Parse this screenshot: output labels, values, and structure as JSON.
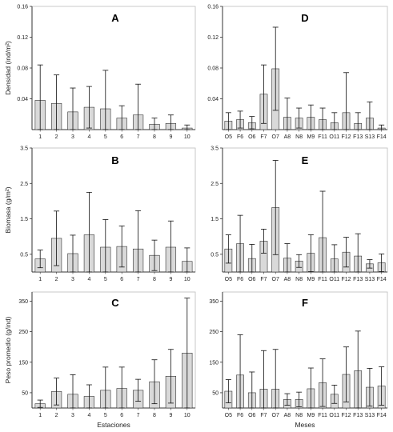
{
  "chart_data": [
    {
      "panel": "A",
      "type": "bar",
      "categories": [
        "1",
        "2",
        "3",
        "4",
        "5",
        "6",
        "7",
        "8",
        "9",
        "10"
      ],
      "values": [
        0.038,
        0.034,
        0.023,
        0.029,
        0.027,
        0.015,
        0.019,
        0.007,
        0.008,
        0.002
      ],
      "errors": [
        0.046,
        0.037,
        0.031,
        0.027,
        0.05,
        0.016,
        0.04,
        0.008,
        0.011,
        0.004
      ],
      "ylabel": "Densidad (ind/m²)",
      "xlabel": "",
      "ylim": [
        0,
        0.16
      ],
      "yticks": [
        0.04,
        0.08,
        0.12,
        0.16
      ],
      "ytick_labels": [
        "0.04",
        "0.08",
        "0.12",
        "0.16"
      ]
    },
    {
      "panel": "D",
      "type": "bar",
      "categories": [
        "O5",
        "F6",
        "O6",
        "F7",
        "O7",
        "A8",
        "N8",
        "M9",
        "F11",
        "O11",
        "F12",
        "F13",
        "S13",
        "F14"
      ],
      "values": [
        0.011,
        0.013,
        0.009,
        0.046,
        0.079,
        0.016,
        0.015,
        0.016,
        0.013,
        0.009,
        0.022,
        0.008,
        0.015,
        0.002
      ],
      "errors": [
        0.011,
        0.011,
        0.008,
        0.038,
        0.054,
        0.025,
        0.013,
        0.016,
        0.015,
        0.013,
        0.052,
        0.014,
        0.021,
        0.004
      ],
      "ylabel": "",
      "xlabel": "",
      "ylim": [
        0,
        0.16
      ],
      "yticks": [
        0.04,
        0.08,
        0.12,
        0.16
      ],
      "ytick_labels": [
        "0.04",
        "0.08",
        "0.12",
        "0.16"
      ]
    },
    {
      "panel": "B",
      "type": "bar",
      "categories": [
        "1",
        "2",
        "3",
        "4",
        "5",
        "6",
        "7",
        "8",
        "9",
        "10"
      ],
      "values": [
        0.37,
        0.95,
        0.52,
        1.05,
        0.7,
        0.72,
        0.65,
        0.47,
        0.7,
        0.3
      ],
      "errors": [
        0.25,
        0.77,
        0.52,
        1.2,
        0.78,
        0.58,
        1.08,
        0.43,
        0.74,
        0.38
      ],
      "ylabel": "Biomasa (g/m²)",
      "xlabel": "",
      "ylim": [
        0,
        3.5
      ],
      "yticks": [
        0.5,
        1.5,
        2.5,
        3.5
      ],
      "ytick_labels": [
        "0.5",
        "1.5",
        "2.5",
        "3.5"
      ]
    },
    {
      "panel": "E",
      "type": "bar",
      "categories": [
        "O5",
        "F6",
        "O6",
        "F7",
        "O7",
        "A8",
        "N8",
        "M9",
        "F11",
        "O11",
        "F12",
        "F13",
        "S13",
        "F14"
      ],
      "values": [
        0.65,
        0.8,
        0.38,
        0.87,
        1.82,
        0.39,
        0.31,
        0.53,
        0.97,
        0.37,
        0.56,
        0.45,
        0.23,
        0.26
      ],
      "errors": [
        0.4,
        0.8,
        0.4,
        0.34,
        1.33,
        0.41,
        0.18,
        0.52,
        1.31,
        0.4,
        0.42,
        0.63,
        0.12,
        0.25
      ],
      "ylabel": "",
      "xlabel": "",
      "ylim": [
        0,
        3.5
      ],
      "yticks": [
        0.5,
        1.5,
        2.5,
        3.5
      ],
      "ytick_labels": [
        "0.5",
        "1.5",
        "2.5",
        "3.5"
      ]
    },
    {
      "panel": "C",
      "type": "bar",
      "categories": [
        "1",
        "2",
        "3",
        "4",
        "5",
        "6",
        "7",
        "8",
        "9",
        "10"
      ],
      "values": [
        14,
        54,
        45,
        38,
        58,
        64,
        58,
        86,
        104,
        180
      ],
      "errors": [
        12,
        44,
        64,
        38,
        76,
        70,
        36,
        72,
        88,
        180
      ],
      "ylabel": "Peso promedio (g/ind)",
      "xlabel": "Estaciones",
      "ylim": [
        0,
        380
      ],
      "yticks": [
        50,
        150,
        250,
        350
      ],
      "ytick_labels": [
        "50",
        "150",
        "250",
        "350"
      ]
    },
    {
      "panel": "F",
      "type": "bar",
      "categories": [
        "O5",
        "F6",
        "O6",
        "F7",
        "O7",
        "A8",
        "N8",
        "M9",
        "F11",
        "O11",
        "F12",
        "F13",
        "S13",
        "F14"
      ],
      "values": [
        55,
        108,
        50,
        62,
        62,
        28,
        28,
        63,
        83,
        45,
        110,
        122,
        68,
        72
      ],
      "errors": [
        38,
        132,
        68,
        126,
        130,
        19,
        24,
        68,
        78,
        30,
        90,
        130,
        62,
        63
      ],
      "ylabel": "",
      "xlabel": "Meses",
      "ylim": [
        0,
        380
      ],
      "yticks": [
        50,
        150,
        250,
        350
      ],
      "ytick_labels": [
        "50",
        "150",
        "250",
        "350"
      ]
    }
  ],
  "colors": {
    "bar_fill": "#d9d9d9",
    "bar_stroke": "#333333",
    "axis": "#333333",
    "frame": "#bdbdbd"
  }
}
